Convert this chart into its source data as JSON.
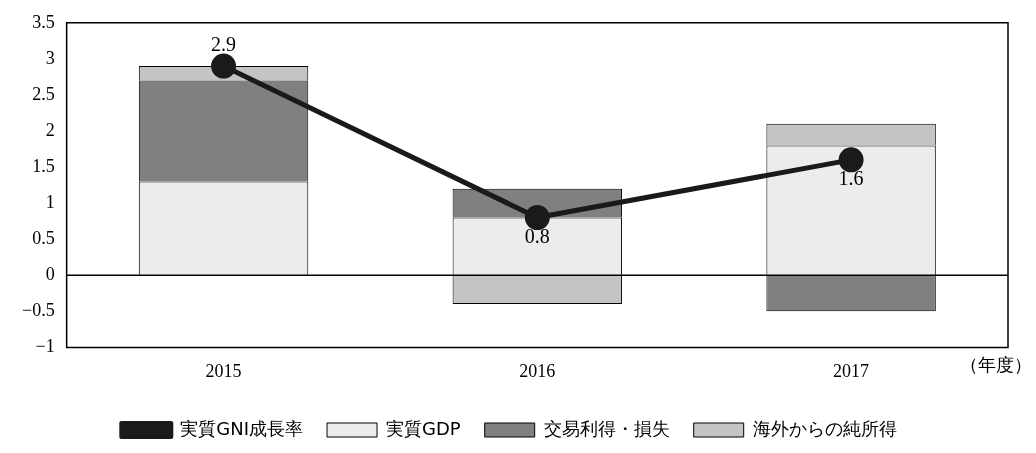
{
  "chart_data": {
    "type": "bar",
    "stacked": true,
    "categories": [
      "2015",
      "2016",
      "2017"
    ],
    "xlabel": "（年度）",
    "series": [
      {
        "name": "実質GDP",
        "color": "#ececec",
        "values": [
          1.3,
          0.8,
          1.8
        ]
      },
      {
        "name": "交易利得・損失",
        "color": "#808080",
        "values": [
          1.4,
          0.4,
          -0.5
        ]
      },
      {
        "name": "海外からの純所得",
        "color": "#c4c4c4",
        "values": [
          0.2,
          -0.4,
          0.3
        ]
      },
      {
        "name": "実質GNI成長率",
        "type": "line",
        "color": "#1a1a1a",
        "values": [
          2.9,
          0.8,
          1.6
        ],
        "value_labels": [
          "2.9",
          "0.8",
          "1.6"
        ],
        "marker": "circle"
      }
    ],
    "ylim": [
      -1,
      3.5
    ],
    "yticks": [
      {
        "value": -1,
        "label": "−1"
      },
      {
        "value": -0.5,
        "label": "−0.5"
      },
      0,
      0.5,
      1,
      1.5,
      2,
      2.5,
      3,
      3.5
    ],
    "ref_lines": [
      {
        "axis": "y",
        "value": 0,
        "color": "#000000"
      }
    ],
    "grid": false,
    "legend": "bottom"
  }
}
